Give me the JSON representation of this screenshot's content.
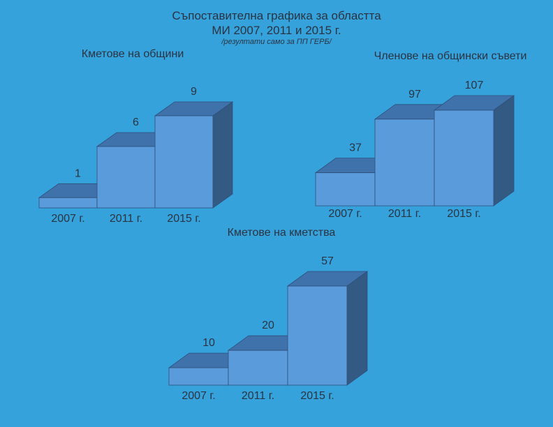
{
  "header": {
    "title_line1": "Съпоставителна графика за областта",
    "title_line2": "МИ 2007, 2011 и 2015 г.",
    "subtitle": "/резултати само за ПП ГЕРБ/"
  },
  "colors": {
    "background": "#35a2dc",
    "bar_front": "#5a9bdb",
    "bar_top": "#3f72aa",
    "bar_side": "#335a82",
    "bar_stroke": "#2f4f7a"
  },
  "chart_data": [
    {
      "type": "bar",
      "title": "Кметове на общини",
      "categories": [
        "2007 г.",
        "2011 г.",
        "2015 г."
      ],
      "values": [
        1,
        6,
        9
      ],
      "ylim": [
        0,
        9
      ],
      "grid": false,
      "legend": "none",
      "style": "3d-stepped"
    },
    {
      "type": "bar",
      "title": "Членове на общински съвети",
      "categories": [
        "2007 г.",
        "2011 г.",
        "2015 г."
      ],
      "values": [
        37,
        97,
        107
      ],
      "ylim": [
        0,
        107
      ],
      "grid": false,
      "legend": "none",
      "style": "3d-stepped"
    },
    {
      "type": "bar",
      "title": "Кметове на кметства",
      "categories": [
        "2007 г.",
        "2011 г.",
        "2015 г."
      ],
      "values": [
        10,
        20,
        57
      ],
      "ylim": [
        0,
        57
      ],
      "grid": false,
      "legend": "none",
      "style": "3d-stepped"
    }
  ]
}
